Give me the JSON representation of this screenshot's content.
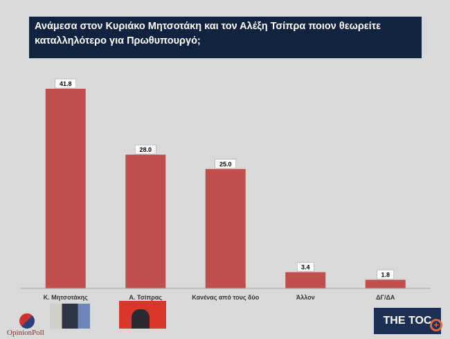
{
  "chart_data": {
    "type": "bar",
    "title": "Ανάμεσα στον Κυριάκο Μητσοτάκη και τον Αλέξη Τσίπρα ποιον θεωρείτε καταλληλότερο για Πρωθυπουργό;",
    "categories": [
      "Κ. Μητσοτάκης",
      "Α. Τσίπρας",
      "Κανένας από τους δύο",
      "Άλλον",
      "ΔΓ/ΔΑ"
    ],
    "values": [
      41.8,
      28.0,
      25.0,
      3.4,
      1.8
    ],
    "value_labels": [
      "41.8",
      "28.0",
      "25.0",
      "3.4",
      "1.8"
    ],
    "bar_color": "#c0504d",
    "ylim": [
      0,
      45
    ],
    "grid": false,
    "legend": "none"
  },
  "logos": {
    "opinionpoll": "OpinionPoll",
    "toc": "THE TOC"
  },
  "icons": {
    "zoom": "zoom-in-icon"
  }
}
